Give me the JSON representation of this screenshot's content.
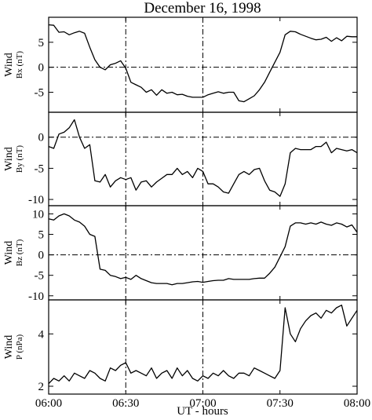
{
  "title": "December 16, 1998",
  "x_axis": {
    "label": "UT - hours",
    "ticks": [
      "06:00",
      "06:30",
      "07:00",
      "07:30",
      "08:00"
    ]
  },
  "colors": {
    "line": "#000000",
    "background": "#ffffff"
  },
  "chart_data": [
    {
      "type": "line",
      "ylabel_main": "Wind",
      "ylabel_sub": "Bx (nT)",
      "ylim": [
        -9,
        10
      ],
      "yticks": [
        5,
        0,
        -5
      ],
      "reference_lines": {
        "horizontal": [
          0
        ],
        "vertical_minutes": [
          30,
          60
        ]
      },
      "x_minutes": [
        0,
        2,
        4,
        6,
        8,
        10,
        12,
        14,
        16,
        18,
        20,
        22,
        24,
        26,
        28,
        30,
        32,
        34,
        36,
        38,
        40,
        42,
        44,
        46,
        48,
        50,
        52,
        54,
        56,
        58,
        60,
        62,
        64,
        66,
        68,
        70,
        72,
        74,
        76,
        78,
        80,
        82,
        84,
        86,
        88,
        90,
        92,
        94,
        96,
        98,
        100,
        102,
        104,
        106,
        108,
        110,
        112,
        114,
        116,
        118,
        120
      ],
      "values": [
        8.5,
        8.4,
        7.0,
        7.1,
        6.5,
        6.9,
        7.2,
        6.8,
        4.0,
        1.5,
        0.0,
        -0.5,
        0.5,
        0.8,
        1.3,
        -0.2,
        -3.0,
        -3.5,
        -4.0,
        -5.0,
        -4.5,
        -5.6,
        -4.5,
        -5.2,
        -5.0,
        -5.5,
        -5.4,
        -5.8,
        -6.0,
        -6.0,
        -6.0,
        -5.5,
        -5.2,
        -4.9,
        -5.2,
        -5.0,
        -5.0,
        -6.7,
        -6.9,
        -6.3,
        -5.7,
        -4.5,
        -3.0,
        -1.0,
        1.0,
        3.0,
        6.5,
        7.2,
        7.1,
        6.6,
        6.2,
        5.8,
        5.5,
        5.6,
        6.0,
        5.2,
        5.9,
        5.3,
        6.2,
        6.1,
        6.1
      ]
    },
    {
      "type": "line",
      "ylabel_main": "Wind",
      "ylabel_sub": "By (nT)",
      "ylim": [
        -11,
        4
      ],
      "yticks": [
        0,
        -5,
        -10
      ],
      "reference_lines": {
        "horizontal": [
          0
        ],
        "vertical_minutes": [
          30,
          60
        ]
      },
      "x_minutes": [
        0,
        2,
        4,
        6,
        8,
        10,
        12,
        14,
        16,
        18,
        20,
        22,
        24,
        26,
        28,
        30,
        32,
        34,
        36,
        38,
        40,
        42,
        44,
        46,
        48,
        50,
        52,
        54,
        56,
        58,
        60,
        62,
        64,
        66,
        68,
        70,
        72,
        74,
        76,
        78,
        80,
        82,
        84,
        86,
        88,
        90,
        92,
        94,
        96,
        98,
        100,
        102,
        104,
        106,
        108,
        110,
        112,
        114,
        116,
        118,
        120
      ],
      "values": [
        -1.5,
        -1.8,
        0.5,
        0.8,
        1.5,
        2.8,
        0.0,
        -1.8,
        -1.2,
        -7.0,
        -7.2,
        -6.0,
        -8.0,
        -7.0,
        -6.5,
        -6.8,
        -6.5,
        -8.5,
        -7.2,
        -7.0,
        -8.0,
        -7.2,
        -6.6,
        -6.0,
        -6.0,
        -5.0,
        -6.0,
        -5.5,
        -6.5,
        -5.0,
        -5.5,
        -7.5,
        -7.5,
        -8.0,
        -8.8,
        -9.0,
        -7.5,
        -6.0,
        -5.5,
        -6.0,
        -5.2,
        -5.0,
        -7.0,
        -8.5,
        -8.8,
        -9.5,
        -7.5,
        -2.5,
        -1.8,
        -2.0,
        -2.0,
        -2.0,
        -1.5,
        -1.5,
        -0.8,
        -2.5,
        -1.8,
        -2.0,
        -2.2,
        -2.0,
        -2.5
      ]
    },
    {
      "type": "line",
      "ylabel_main": "Wind",
      "ylabel_sub": "Bz (nT)",
      "ylim": [
        -11,
        12
      ],
      "yticks": [
        10,
        5,
        0,
        -5,
        -10
      ],
      "reference_lines": {
        "horizontal": [
          0
        ],
        "vertical_minutes": [
          30,
          60
        ]
      },
      "x_minutes": [
        0,
        2,
        4,
        6,
        8,
        10,
        12,
        14,
        16,
        18,
        20,
        22,
        24,
        26,
        28,
        30,
        32,
        34,
        36,
        38,
        40,
        42,
        44,
        46,
        48,
        50,
        52,
        54,
        56,
        58,
        60,
        62,
        64,
        66,
        68,
        70,
        72,
        74,
        76,
        78,
        80,
        82,
        84,
        86,
        88,
        90,
        92,
        94,
        96,
        98,
        100,
        102,
        104,
        106,
        108,
        110,
        112,
        114,
        116,
        118,
        120
      ],
      "values": [
        8.8,
        8.5,
        9.5,
        10.0,
        9.5,
        8.5,
        8.0,
        7.0,
        5.0,
        4.5,
        -3.5,
        -3.8,
        -5.0,
        -5.3,
        -5.8,
        -5.5,
        -6.0,
        -5.0,
        -5.8,
        -6.3,
        -6.8,
        -7.0,
        -7.0,
        -7.0,
        -7.3,
        -7.0,
        -7.0,
        -6.8,
        -6.6,
        -6.5,
        -6.7,
        -6.5,
        -6.3,
        -6.2,
        -6.2,
        -5.8,
        -6.0,
        -6.0,
        -6.0,
        -6.0,
        -5.8,
        -5.7,
        -5.7,
        -4.5,
        -3.0,
        -0.5,
        2.0,
        7.0,
        7.8,
        7.8,
        7.5,
        7.8,
        7.5,
        8.0,
        7.5,
        7.2,
        7.8,
        7.5,
        6.8,
        7.3,
        5.5
      ]
    },
    {
      "type": "line",
      "ylabel_main": "Wind",
      "ylabel_sub": "P (nPa)",
      "ylim": [
        1.7,
        5.3
      ],
      "yticks": [
        4,
        2
      ],
      "reference_lines": {
        "horizontal": [],
        "vertical_minutes": [
          30,
          60
        ]
      },
      "x_minutes": [
        0,
        2,
        4,
        6,
        8,
        10,
        12,
        14,
        16,
        18,
        20,
        22,
        24,
        26,
        28,
        30,
        32,
        34,
        36,
        38,
        40,
        42,
        44,
        46,
        48,
        50,
        52,
        54,
        56,
        58,
        60,
        62,
        64,
        66,
        68,
        70,
        72,
        74,
        76,
        78,
        80,
        82,
        84,
        86,
        88,
        90,
        92,
        94,
        96,
        98,
        100,
        102,
        104,
        106,
        108,
        110,
        112,
        114,
        116,
        118,
        120
      ],
      "values": [
        2.1,
        2.3,
        2.2,
        2.4,
        2.2,
        2.5,
        2.4,
        2.3,
        2.6,
        2.5,
        2.3,
        2.2,
        2.7,
        2.6,
        2.8,
        2.9,
        2.5,
        2.6,
        2.5,
        2.4,
        2.7,
        2.3,
        2.5,
        2.6,
        2.3,
        2.7,
        2.4,
        2.6,
        2.3,
        2.2,
        2.4,
        2.3,
        2.5,
        2.4,
        2.6,
        2.4,
        2.3,
        2.5,
        2.5,
        2.4,
        2.7,
        2.6,
        2.5,
        2.4,
        2.3,
        2.6,
        5.0,
        4.0,
        3.7,
        4.2,
        4.5,
        4.7,
        4.8,
        4.6,
        4.9,
        4.8,
        5.0,
        5.1,
        4.3,
        4.6,
        4.9
      ]
    }
  ]
}
